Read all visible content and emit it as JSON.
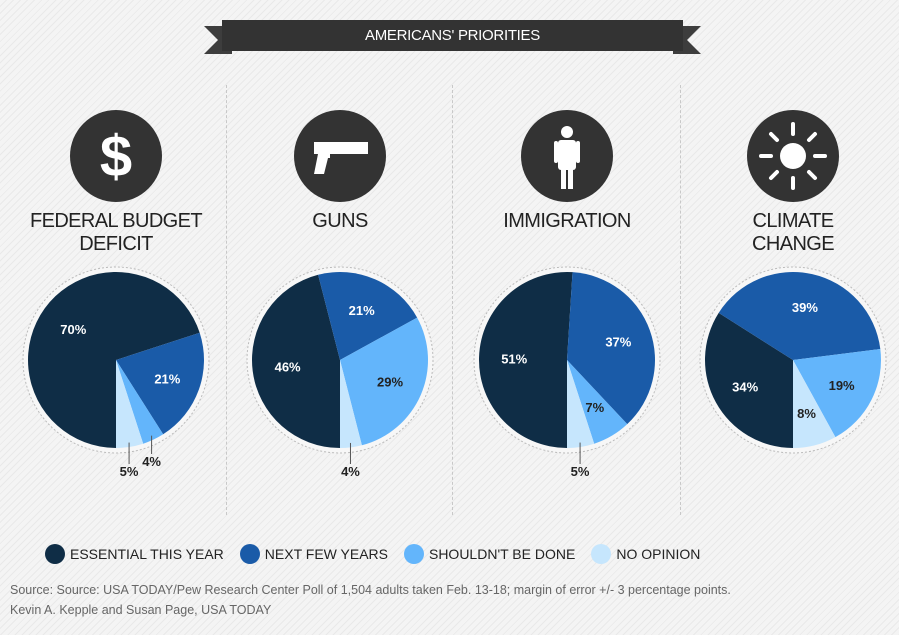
{
  "header": {
    "title": "AMERICANS' PRIORITIES"
  },
  "colors": {
    "essential": "#0f2d46",
    "next_few_years": "#1a5ba8",
    "shouldnt": "#63b5fb",
    "no_opinion": "#c6e6fd"
  },
  "chart_data": [
    {
      "type": "pie",
      "title": "FEDERAL BUDGET DEFICIT",
      "icon": "dollar-icon",
      "categories": [
        "Essential this year",
        "Next few years",
        "Shouldn't be done",
        "No opinion"
      ],
      "values": [
        70,
        21,
        4,
        5
      ],
      "labels": [
        "70%",
        "21%",
        "4%",
        "5%"
      ]
    },
    {
      "type": "pie",
      "title": "GUNS",
      "icon": "gun-icon",
      "categories": [
        "Essential this year",
        "Next few years",
        "Shouldn't be done",
        "No opinion"
      ],
      "values": [
        46,
        21,
        29,
        4
      ],
      "labels": [
        "46%",
        "21%",
        "29%",
        "4%"
      ]
    },
    {
      "type": "pie",
      "title": "IMMIGRATION",
      "icon": "person-icon",
      "categories": [
        "Essential this year",
        "Next few years",
        "Shouldn't be done",
        "No opinion"
      ],
      "values": [
        51,
        37,
        7,
        5
      ],
      "labels": [
        "51%",
        "37%",
        "7%",
        "5%"
      ]
    },
    {
      "type": "pie",
      "title": "CLIMATE CHANGE",
      "icon": "sun-icon",
      "categories": [
        "Essential this year",
        "Next few years",
        "Shouldn't be done",
        "No opinion"
      ],
      "values": [
        34,
        39,
        19,
        8
      ],
      "labels": [
        "34%",
        "39%",
        "19%",
        "8%"
      ]
    }
  ],
  "titles": {
    "t0a": "FEDERAL BUDGET",
    "t0b": "DEFICIT",
    "t1": "GUNS",
    "t2": "IMMIGRATION",
    "t3a": "CLIMATE",
    "t3b": "CHANGE"
  },
  "legend": [
    "ESSENTIAL THIS YEAR",
    "NEXT FEW YEARS",
    "SHOULDN'T BE DONE",
    "NO OPINION"
  ],
  "source": {
    "line1": "Source: Source: USA TODAY/Pew Research Center Poll of 1,504 adults taken Feb. 13-18; margin of error +/- 3 percentage points.",
    "line2": "Kevin A. Kepple and Susan Page, USA TODAY"
  }
}
